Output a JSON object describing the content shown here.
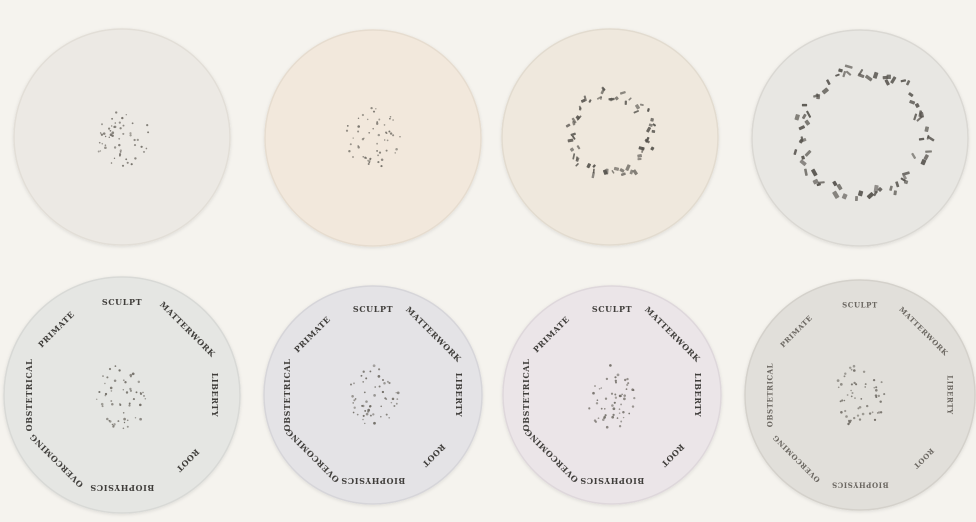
{
  "page": {
    "background": "#f5f3ee",
    "ink": "#6e6a63"
  },
  "discs_top": [
    {
      "fill": "#ece9e4",
      "rim": "#e2ded7",
      "pattern": "cluster",
      "stage": "dots"
    },
    {
      "fill": "#f2e8dc",
      "rim": "#e6dccf",
      "pattern": "cluster",
      "stage": "dots"
    },
    {
      "fill": "#efe8dd",
      "rim": "#e2dbcf",
      "pattern": "small-ring",
      "stage": "letters"
    },
    {
      "fill": "#e8e7e3",
      "rim": "#dad8d3",
      "pattern": "large-ring",
      "stage": "letters"
    }
  ],
  "discs_bottom": [
    {
      "fill": "#e5e6e3",
      "rim": "#d8d9d6"
    },
    {
      "fill": "#e4e3e6",
      "rim": "#d6d5d9"
    },
    {
      "fill": "#ebe5e8",
      "rim": "#ded7db"
    },
    {
      "fill": "#e1dfda",
      "rim": "#d4d1cb"
    }
  ],
  "words": [
    "SCULPT",
    "MATTERWORK",
    "LIBERTY",
    "ROOT",
    "BIOPHYSICS",
    "OVERCOMING",
    "OBSTETRICAL",
    "PRIMATE"
  ]
}
